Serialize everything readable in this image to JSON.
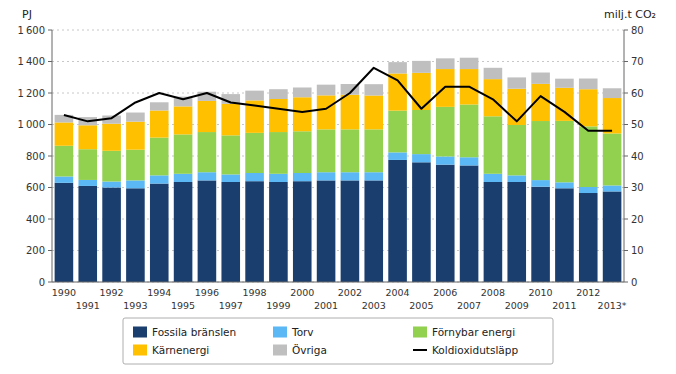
{
  "chart_data": {
    "type": "bar",
    "stacked": true,
    "ylabel": "PJ",
    "y2label": "milj.t CO₂",
    "categories": [
      "1990",
      "1991",
      "1992",
      "1993",
      "1994",
      "1995",
      "1996",
      "1997",
      "1998",
      "1999",
      "2000",
      "2001",
      "2002",
      "2003",
      "2004",
      "2005",
      "2006",
      "2007",
      "2008",
      "2009",
      "2010",
      "2011",
      "2012",
      "2013*"
    ],
    "series": [
      {
        "name": "Fossila bränslen",
        "color": "#1a3f6f",
        "values": [
          630,
          610,
          600,
          595,
          625,
          635,
          645,
          635,
          640,
          635,
          640,
          645,
          645,
          645,
          775,
          760,
          745,
          740,
          635,
          635,
          605,
          595,
          565,
          575
        ]
      },
      {
        "name": "Torv",
        "color": "#5bb8f5",
        "values": [
          40,
          38,
          38,
          50,
          52,
          52,
          52,
          48,
          52,
          52,
          52,
          52,
          52,
          52,
          48,
          52,
          52,
          52,
          52,
          42,
          42,
          38,
          38,
          38
        ]
      },
      {
        "name": "Förnybar energi",
        "color": "#92d050",
        "values": [
          195,
          195,
          195,
          195,
          240,
          250,
          255,
          248,
          255,
          265,
          265,
          272,
          272,
          272,
          265,
          280,
          315,
          335,
          365,
          320,
          375,
          390,
          385,
          330
        ]
      },
      {
        "name": "Kärnenergi",
        "color": "#ffc000",
        "values": [
          148,
          152,
          172,
          178,
          172,
          178,
          198,
          200,
          206,
          210,
          216,
          216,
          220,
          215,
          236,
          236,
          240,
          225,
          236,
          230,
          236,
          210,
          236,
          225
        ]
      },
      {
        "name": "Övriga",
        "color": "#bfbfbf",
        "values": [
          48,
          52,
          52,
          58,
          52,
          62,
          58,
          62,
          62,
          62,
          62,
          68,
          68,
          72,
          72,
          76,
          68,
          72,
          72,
          72,
          72,
          58,
          68,
          62
        ]
      },
      {
        "name": "Koldioxidutsläpp",
        "color": "#000000",
        "type": "line",
        "axis": "y2",
        "values": [
          53,
          51,
          52,
          57,
          60,
          58,
          60,
          57,
          56,
          55,
          54,
          55,
          60,
          68,
          64,
          55,
          62,
          62,
          58,
          51,
          59,
          54,
          48,
          48
        ]
      }
    ],
    "ylim": [
      0,
      1600
    ],
    "yticks": [
      0,
      200,
      400,
      600,
      800,
      {
        "value": 1000,
        "label": "1 000"
      },
      {
        "value": 1200,
        "label": "1 200"
      },
      {
        "value": 1400,
        "label": "1 400"
      },
      {
        "value": 1600,
        "label": "1 600"
      }
    ],
    "y2lim": [
      0,
      80
    ],
    "y2ticks": [
      0,
      10,
      20,
      30,
      40,
      50,
      60,
      70,
      80
    ],
    "grid": true,
    "legend": "bottom"
  }
}
